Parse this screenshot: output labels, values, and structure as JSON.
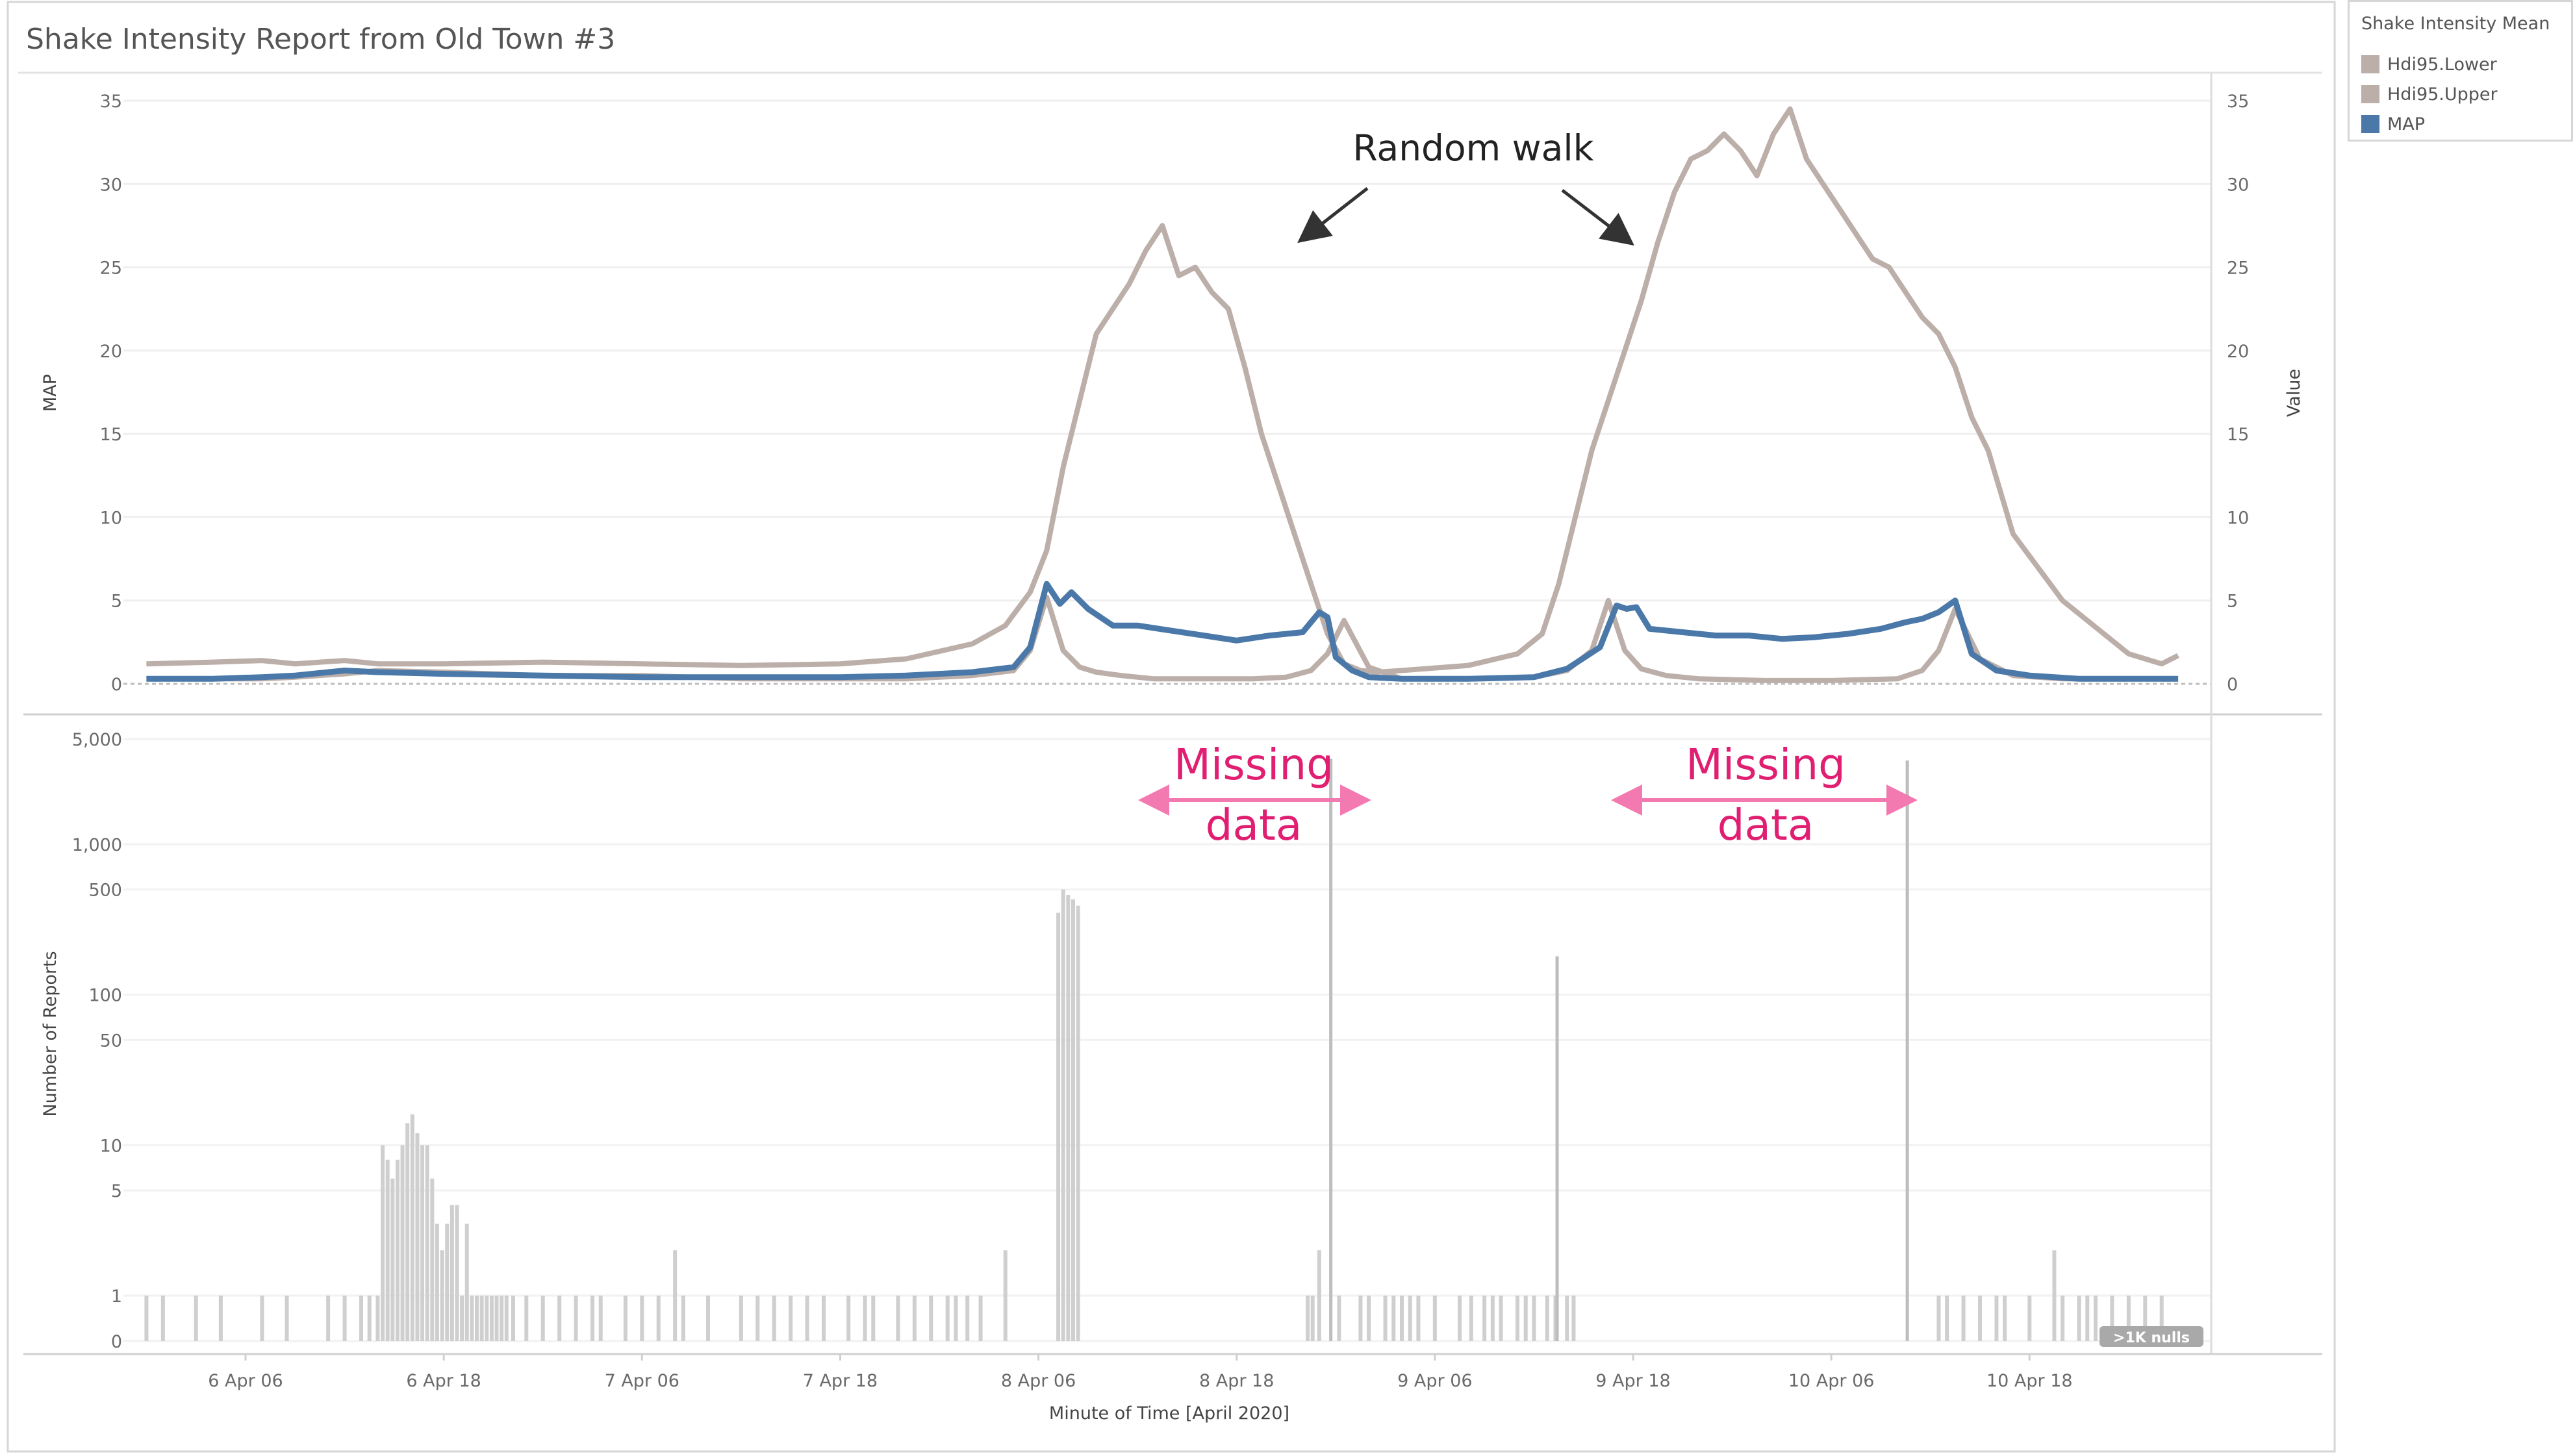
{
  "chart_data": [
    {
      "type": "line",
      "title": "Shake Intensity Report from Old Town #3",
      "ylabel_left": "MAP",
      "ylabel_right": "Value",
      "ylim": [
        0,
        35
      ],
      "yticks": [
        0,
        5,
        10,
        15,
        20,
        25,
        30,
        35
      ],
      "xlabel": "Minute of Time [April 2020]",
      "xticks": [
        "6 Apr 06",
        "6 Apr 18",
        "7 Apr 06",
        "7 Apr 18",
        "8 Apr 06",
        "8 Apr 18",
        "9 Apr 06",
        "9 Apr 18",
        "10 Apr 06",
        "10 Apr 18"
      ],
      "xtick_hours": [
        30,
        42,
        54,
        66,
        78,
        90,
        102,
        114,
        126,
        138
      ],
      "xlim_hours": [
        23,
        149
      ],
      "legend_title": "Shake Intensity Mean",
      "legend_position": "top-right",
      "colors": {
        "lower": "#bcaea8",
        "upper": "#bcaea8",
        "map": "#4a78a8"
      },
      "series": [
        {
          "name": "Hdi95.Lower",
          "x": [
            24,
            28,
            31,
            33,
            36,
            38,
            42,
            48,
            54,
            60,
            66,
            70,
            74,
            76.5,
            77.5,
            78.5,
            79.5,
            80.5,
            81.5,
            83,
            85,
            88,
            91,
            93,
            94.5,
            95.5,
            96.5,
            98,
            100,
            104,
            108,
            110,
            111.5,
            112.5,
            113.5,
            114.5,
            116,
            118,
            122,
            126,
            130,
            131.5,
            132.5,
            133.5,
            135,
            137,
            140,
            144,
            146,
            147
          ],
          "y": [
            0.3,
            0.3,
            0.3,
            0.4,
            0.6,
            0.8,
            0.7,
            0.5,
            0.5,
            0.3,
            0.3,
            0.3,
            0.5,
            0.8,
            2.0,
            5.2,
            2.0,
            1.0,
            0.7,
            0.5,
            0.3,
            0.3,
            0.3,
            0.4,
            0.8,
            1.8,
            3.8,
            1.0,
            0.3,
            0.3,
            0.4,
            0.8,
            2.0,
            5.0,
            2.0,
            0.9,
            0.5,
            0.3,
            0.2,
            0.2,
            0.3,
            0.8,
            2.0,
            4.5,
            1.5,
            0.5,
            0.3,
            0.3,
            0.3,
            0.3
          ]
        },
        {
          "name": "Hdi95.Upper",
          "x": [
            24,
            28,
            31,
            33,
            36,
            38,
            42,
            48,
            54,
            60,
            66,
            70,
            74,
            76,
            77.5,
            78.5,
            79.5,
            80.5,
            81.5,
            82.5,
            83.5,
            84.5,
            85.5,
            86.5,
            87.5,
            88.5,
            89.5,
            90.5,
            91.5,
            92.5,
            93.5,
            94.5,
            95.5,
            96.5,
            97.5,
            98.5,
            100,
            104,
            107,
            108.5,
            109.5,
            110.5,
            111.5,
            112.5,
            113.5,
            114.5,
            115.5,
            116.5,
            117.5,
            118.5,
            119.5,
            120.5,
            121.5,
            122.5,
            123.5,
            124.5,
            125.5,
            126.5,
            127.5,
            128.5,
            129.5,
            130.5,
            131.5,
            132.5,
            133.5,
            134.5,
            135.5,
            137,
            140,
            144,
            146,
            147
          ],
          "y": [
            1.2,
            1.3,
            1.4,
            1.2,
            1.4,
            1.2,
            1.2,
            1.3,
            1.2,
            1.1,
            1.2,
            1.5,
            2.4,
            3.5,
            5.5,
            8.0,
            13.0,
            17.0,
            21.0,
            22.5,
            24.0,
            26.0,
            27.5,
            24.5,
            25.0,
            23.5,
            22.5,
            19.0,
            15.0,
            12.0,
            9.0,
            6.0,
            3.0,
            1.2,
            0.8,
            0.7,
            0.8,
            1.1,
            1.8,
            3.0,
            6.0,
            10.0,
            14.0,
            17.0,
            20.0,
            23.0,
            26.5,
            29.5,
            31.5,
            32.0,
            33.0,
            32.0,
            30.5,
            33.0,
            34.5,
            31.5,
            30.0,
            28.5,
            27.0,
            25.5,
            25.0,
            23.5,
            22.0,
            21.0,
            19.0,
            16.0,
            14.0,
            9.0,
            5.0,
            1.8,
            1.2,
            1.7
          ]
        },
        {
          "name": "MAP",
          "x": [
            24,
            28,
            31,
            33,
            36,
            38,
            42,
            48,
            54,
            60,
            66,
            70,
            74,
            76.5,
            77.5,
            78.5,
            79.3,
            80,
            81,
            82.5,
            84,
            86,
            88,
            90,
            92,
            94,
            95,
            95.5,
            96,
            97,
            98,
            100,
            104,
            108,
            110,
            112,
            113,
            113.6,
            114.2,
            115,
            117,
            119,
            121,
            123,
            125,
            127,
            129,
            130.5,
            131.5,
            132.5,
            133.5,
            134.5,
            136,
            138,
            141,
            144,
            146,
            147
          ],
          "y": [
            0.3,
            0.3,
            0.4,
            0.5,
            0.8,
            0.7,
            0.6,
            0.5,
            0.4,
            0.4,
            0.4,
            0.5,
            0.7,
            1.0,
            2.2,
            6.0,
            4.8,
            5.5,
            4.5,
            3.5,
            3.5,
            3.2,
            2.9,
            2.6,
            2.9,
            3.1,
            4.3,
            4.0,
            1.6,
            0.8,
            0.4,
            0.3,
            0.3,
            0.4,
            0.9,
            2.2,
            4.7,
            4.5,
            4.6,
            3.3,
            3.1,
            2.9,
            2.9,
            2.7,
            2.8,
            3.0,
            3.3,
            3.7,
            3.9,
            4.3,
            5.0,
            1.8,
            0.8,
            0.5,
            0.3,
            0.3,
            0.3,
            0.3
          ]
        }
      ],
      "annotations": {
        "random_walk": "Random walk"
      }
    },
    {
      "type": "bar",
      "ylabel": "Number of Reports",
      "yscale": "log",
      "ylim": [
        0,
        5000
      ],
      "yticks": [
        0,
        1,
        5,
        10,
        50,
        100,
        500,
        1000,
        5000
      ],
      "ytick_labels": [
        "0",
        "1",
        "5",
        "10",
        "50",
        "100",
        "500",
        "1,000",
        "5,000"
      ],
      "color": "#cfcfcf",
      "spike_color": "#bdbdbd",
      "bars": {
        "x": [
          24,
          25,
          27,
          28.5,
          31,
          32.5,
          35,
          36,
          37,
          37.5,
          38,
          38.3,
          38.6,
          38.9,
          39.2,
          39.5,
          39.8,
          40.1,
          40.4,
          40.7,
          41,
          41.3,
          41.6,
          41.9,
          42.2,
          42.5,
          42.8,
          43.1,
          43.4,
          43.7,
          44,
          44.3,
          44.6,
          44.9,
          45.2,
          45.5,
          45.8,
          46.2,
          47,
          48,
          49,
          50,
          51,
          51.5,
          53,
          54,
          55,
          56,
          56.5,
          58,
          60,
          61,
          62,
          63,
          64,
          65,
          66.5,
          67.5,
          68,
          69.5,
          70.5,
          71.5,
          72.5,
          73,
          73.7,
          74.5,
          76,
          79.2,
          79.5,
          79.8,
          80.1,
          80.4,
          94.3,
          94.6,
          95,
          96.2,
          97.5,
          98,
          99,
          99.5,
          100,
          100.5,
          101,
          102,
          103.5,
          104.2,
          105,
          105.5,
          106,
          107,
          107.5,
          108,
          108.8,
          109.3,
          110,
          110.4,
          132.5,
          133,
          134,
          135,
          136,
          136.5,
          138,
          139.5,
          140,
          141,
          141.5,
          142,
          143,
          144,
          145,
          146
        ],
        "y": [
          1,
          1,
          1,
          1,
          1,
          1,
          1,
          1,
          1,
          1,
          1,
          10,
          8,
          6,
          8,
          10,
          14,
          16,
          12,
          10,
          10,
          6,
          3,
          2,
          3,
          4,
          4,
          1,
          3,
          1,
          1,
          1,
          1,
          1,
          1,
          1,
          1,
          1,
          1,
          1,
          1,
          1,
          1,
          1,
          1,
          1,
          1,
          2,
          1,
          1,
          1,
          1,
          1,
          1,
          1,
          1,
          1,
          1,
          1,
          1,
          1,
          1,
          1,
          1,
          1,
          1,
          2,
          350,
          500,
          460,
          430,
          390,
          1,
          1,
          2,
          1,
          1,
          1,
          1,
          1,
          1,
          1,
          1,
          1,
          1,
          1,
          1,
          1,
          1,
          1,
          1,
          1,
          1,
          1,
          1,
          1,
          1,
          1,
          1,
          1,
          1,
          1,
          1,
          2,
          1,
          1,
          1,
          1,
          1,
          1,
          1,
          1
        ]
      },
      "spikes": {
        "x": [
          95.7,
          109.4,
          130.6
        ],
        "y": [
          3700,
          180,
          3600
        ]
      },
      "annotations": {
        "missing_1": [
          "Missing",
          "data"
        ],
        "missing_2": [
          "Missing",
          "data"
        ],
        "nulls_badge": ">1K nulls"
      }
    }
  ]
}
